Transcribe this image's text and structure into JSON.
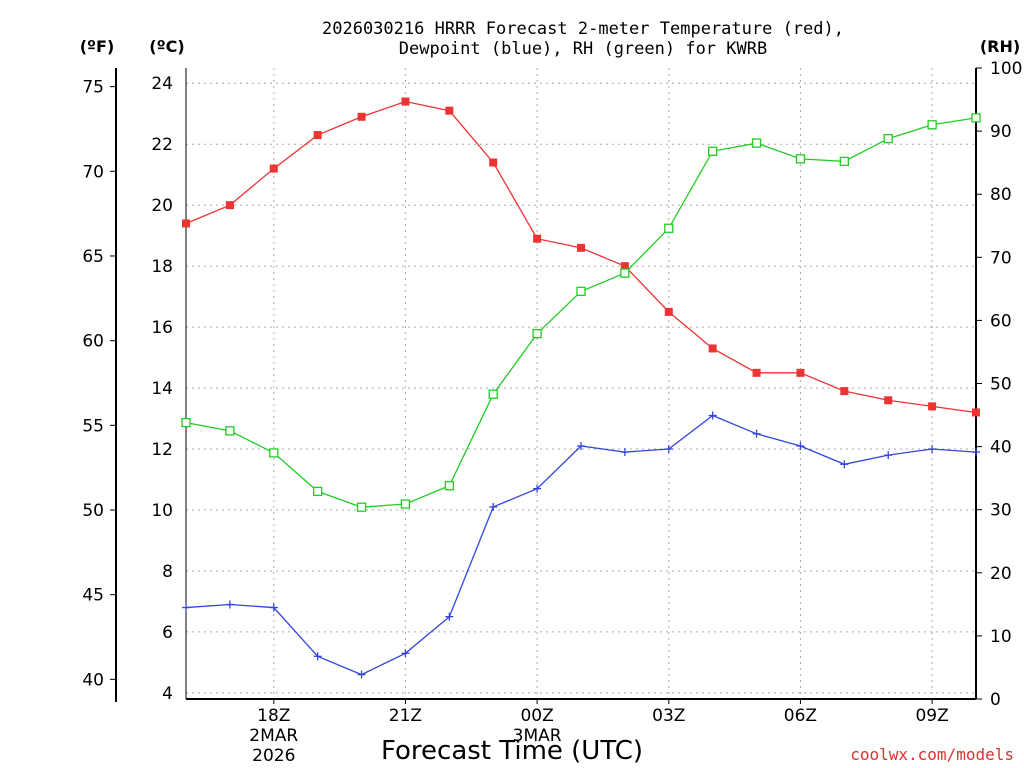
{
  "chart_data": {
    "type": "line",
    "title": [
      "2026030216 HRRR Forecast 2-meter Temperature (red),",
      "Dewpoint (blue), RH (green) for KWRB"
    ],
    "xlabel": "Forecast Time (UTC)",
    "credit": "coolwx.com/models",
    "units": {
      "fahrenheit": "(ºF)",
      "celsius": "(ºC)",
      "rh": "(RH)"
    },
    "hours": [
      16,
      17,
      18,
      19,
      20,
      21,
      22,
      23,
      24,
      25,
      26,
      27,
      28,
      29,
      30,
      31,
      32,
      33,
      34
    ],
    "xlim": [
      16,
      34
    ],
    "x_ticks": [
      {
        "hour": 18,
        "label": "18Z",
        "sub1": "2MAR",
        "sub2": "2026"
      },
      {
        "hour": 21,
        "label": "21Z",
        "sub1": "",
        "sub2": ""
      },
      {
        "hour": 24,
        "label": "00Z",
        "sub1": "3MAR",
        "sub2": ""
      },
      {
        "hour": 27,
        "label": "03Z",
        "sub1": "",
        "sub2": ""
      },
      {
        "hour": 30,
        "label": "06Z",
        "sub1": "",
        "sub2": ""
      },
      {
        "hour": 33,
        "label": "09Z",
        "sub1": "",
        "sub2": ""
      }
    ],
    "celsius_axis": {
      "ylim": [
        3.8,
        24.5
      ],
      "ticks": [
        4,
        6,
        8,
        10,
        12,
        14,
        16,
        18,
        20,
        22,
        24
      ]
    },
    "fahrenheit_axis": {
      "ticks": [
        40,
        45,
        50,
        55,
        60,
        65,
        70,
        75
      ]
    },
    "rh_axis": {
      "ylim": [
        0,
        100
      ],
      "ticks": [
        0,
        10,
        20,
        30,
        40,
        50,
        60,
        70,
        80,
        90,
        100
      ]
    },
    "series": [
      {
        "name": "2-meter Temperature",
        "axis": "celsius",
        "color": "#ee3333",
        "marker": "filled-square",
        "values": [
          19.4,
          20.0,
          21.2,
          22.3,
          22.9,
          23.4,
          23.1,
          21.4,
          18.9,
          18.6,
          18.0,
          16.5,
          15.3,
          14.5,
          14.5,
          13.9,
          13.6,
          13.4,
          13.2
        ]
      },
      {
        "name": "Dewpoint",
        "axis": "celsius",
        "color": "#3344dd",
        "marker": "plus",
        "values": [
          6.8,
          6.9,
          6.8,
          5.2,
          4.6,
          5.3,
          6.5,
          10.1,
          10.7,
          12.1,
          11.9,
          12.0,
          13.1,
          12.5,
          12.1,
          11.5,
          11.8,
          12.0,
          11.9
        ]
      },
      {
        "name": "RH",
        "axis": "rh",
        "color": "#22cc22",
        "marker": "open-square",
        "values": [
          43.8,
          42.5,
          39.0,
          32.9,
          30.4,
          30.9,
          33.8,
          48.3,
          57.9,
          64.6,
          67.5,
          74.6,
          86.8,
          88.1,
          85.6,
          85.2,
          88.8,
          91.0,
          92.1
        ]
      }
    ]
  }
}
